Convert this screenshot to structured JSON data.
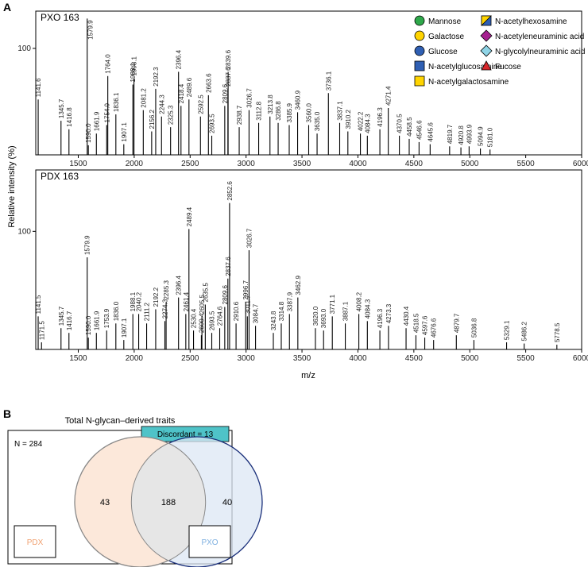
{
  "figure": {
    "panels": [
      "A",
      "B"
    ],
    "ylabel": "Relative intensity (%)",
    "xlabel": "m/z"
  },
  "chart_data": [
    {
      "type": "stem",
      "title": "PXO 163",
      "color": "#000000",
      "xlim": [
        1120,
        6000
      ],
      "xticks": [
        1500,
        2000,
        2500,
        3000,
        3500,
        4000,
        4500,
        5000,
        5500,
        6000
      ],
      "ylim": [
        0,
        135
      ],
      "yticks": [
        100
      ],
      "legend": [
        {
          "name": "Mannose",
          "color": "#2ea84a",
          "shape": "circle"
        },
        {
          "name": "Galactose",
          "color": "#ffd400",
          "shape": "circle"
        },
        {
          "name": "Glucose",
          "color": "#2f5fb3",
          "shape": "circle"
        },
        {
          "name": "N-acetylglucosamine",
          "color": "#2f5fb3",
          "shape": "square"
        },
        {
          "name": "N-acetylgalactosamine",
          "color": "#ffd400",
          "shape": "square"
        },
        {
          "name": "N-acetylhexosamine",
          "color": "#ffd400",
          "shape": "half-square"
        },
        {
          "name": "N-acetyleneuraminic acid",
          "color": "#a5218f",
          "shape": "diamond"
        },
        {
          "name": "N-glycolylneuraminic acid",
          "color": "#8fd4e6",
          "shape": "diamond"
        },
        {
          "name": "Fucose",
          "color": "#d7262a",
          "shape": "triangle"
        }
      ],
      "x": [
        1141.6,
        1345.7,
        1416.8,
        1579.9,
        1590.0,
        1661.9,
        1754.0,
        1764.0,
        1836.1,
        1907.1,
        1988.1,
        1998.1,
        2081.2,
        2156.2,
        2192.3,
        2244.3,
        2325.3,
        2396.4,
        2418.4,
        2489.6,
        2592.5,
        2663.6,
        2693.5,
        2809.6,
        2837.6,
        2839.6,
        2938.7,
        3026.7,
        3112.8,
        3213.8,
        3286.8,
        3385.9,
        3460.9,
        3560.0,
        3635.0,
        3736.1,
        3837.1,
        3910.2,
        4022.2,
        4084.3,
        4196.3,
        4271.4,
        4370.5,
        4458.5,
        4546.6,
        4645.6,
        4819.7,
        4920.8,
        4993.9,
        5094.9,
        5181.0
      ],
      "x_labels": [
        "1141.6",
        "1345.7",
        "1416.8",
        "1579.9",
        "1590.0",
        "1661.9",
        "1754.0",
        "1764.0",
        "1836.1",
        "1907.1",
        "1988.1",
        "1998.1",
        "2081.2",
        "2156.2",
        "2192.3",
        "2244.3",
        "2325.3",
        "2396.4",
        "2418.4",
        "2489.6",
        "2592.5",
        "2663.6",
        "2693.5",
        "2809.6",
        "2837.6",
        "2839.6",
        "2938.7",
        "3026.7",
        "3112.8",
        "3213.8",
        "3286.8",
        "3385.9",
        "3460.9",
        "3560.0",
        "3635.0",
        "3736.1",
        "3837.1",
        "3910.2",
        "4022.2",
        "4084.3",
        "4196.3",
        "4271.4",
        "4370.5",
        "4458.5",
        "4546.6",
        "4645.6",
        "4819.7",
        "4920.8",
        "4993.9",
        "5094.9",
        "5181.0"
      ],
      "values": [
        52,
        32,
        24,
        128,
        9,
        20,
        28,
        74,
        38,
        10,
        66,
        72,
        42,
        22,
        62,
        36,
        26,
        78,
        46,
        52,
        36,
        56,
        18,
        46,
        62,
        78,
        26,
        42,
        30,
        36,
        30,
        28,
        40,
        28,
        20,
        58,
        30,
        22,
        20,
        18,
        24,
        44,
        18,
        15,
        12,
        10,
        8,
        7,
        8,
        6,
        5
      ]
    },
    {
      "type": "stem",
      "title": "PDX 163",
      "color": "#000000",
      "xlim": [
        1120,
        6000
      ],
      "xticks": [
        1500,
        2000,
        2500,
        3000,
        3500,
        4000,
        4500,
        5000,
        5500,
        6000
      ],
      "ylim": [
        0,
        152
      ],
      "yticks": [
        100
      ],
      "x": [
        1141.5,
        1171.5,
        1345.7,
        1416.7,
        1579.9,
        1590.0,
        1661.9,
        1753.9,
        1836.0,
        1907.1,
        1988.1,
        2040.2,
        2111.2,
        2192.2,
        2274.3,
        2285.3,
        2396.4,
        2461.4,
        2489.4,
        2530.4,
        2600.4,
        2605.5,
        2635.5,
        2693.5,
        2764.6,
        2809.6,
        2837.6,
        2852.6,
        2910.6,
        2996.7,
        3011.7,
        3026.7,
        3084.7,
        3243.8,
        3314.8,
        3387.9,
        3462.9,
        3620.0,
        3693.0,
        3771.1,
        3887.1,
        4008.2,
        4084.3,
        4196.3,
        4273.3,
        4430.4,
        4518.5,
        4597.6,
        4676.6,
        4879.7,
        5036.8,
        5329.1,
        5486.2,
        5778.5
      ],
      "x_labels": [
        "1141.5",
        "1171.5",
        "1345.7",
        "1416.7",
        "1579.9",
        "1590.0",
        "1661.9",
        "1753.9",
        "1836.0",
        "1907.1",
        "1988.1",
        "2040.2",
        "2111.2",
        "2192.2",
        "2274.3",
        "2285.3",
        "2396.4",
        "2461.4",
        "2489.4",
        "2530.4",
        "2600.4",
        "2605.5",
        "2635.5",
        "2693.5",
        "2764.6",
        "2809.6",
        "2837.6",
        "2852.6",
        "2910.6",
        "2996.7",
        "3011.7",
        "3026.7",
        "3084.7",
        "3243.8",
        "3314.8",
        "3387.9",
        "3462.9",
        "3620.0",
        "3693.0",
        "3771.1",
        "3887.1",
        "4008.2",
        "4084.3",
        "4196.3",
        "4273.3",
        "4430.4",
        "4518.5",
        "4597.6",
        "4676.6",
        "4879.7",
        "5036.8",
        "5329.1",
        "5486.2",
        "5778.5"
      ],
      "values": [
        28,
        6,
        18,
        14,
        78,
        10,
        14,
        16,
        22,
        8,
        30,
        30,
        22,
        34,
        24,
        40,
        44,
        30,
        102,
        16,
        12,
        28,
        38,
        14,
        18,
        36,
        60,
        124,
        22,
        40,
        28,
        84,
        20,
        14,
        22,
        30,
        44,
        18,
        16,
        28,
        22,
        30,
        24,
        16,
        20,
        18,
        12,
        10,
        8,
        12,
        8,
        6,
        5,
        4
      ]
    },
    {
      "type": "venn",
      "title": "Total N-glycan–derived traits",
      "annotations": [
        "N = 284",
        "Discordant = 13"
      ],
      "annotation_color": "#4fc3c8",
      "sets": [
        {
          "name": "PDX",
          "color": "#f0a070",
          "fill": "#fce8da"
        },
        {
          "name": "PXO",
          "color": "#7fb0e0",
          "fill": "#dce7f4"
        }
      ],
      "values": [
        43,
        188,
        40
      ]
    }
  ]
}
